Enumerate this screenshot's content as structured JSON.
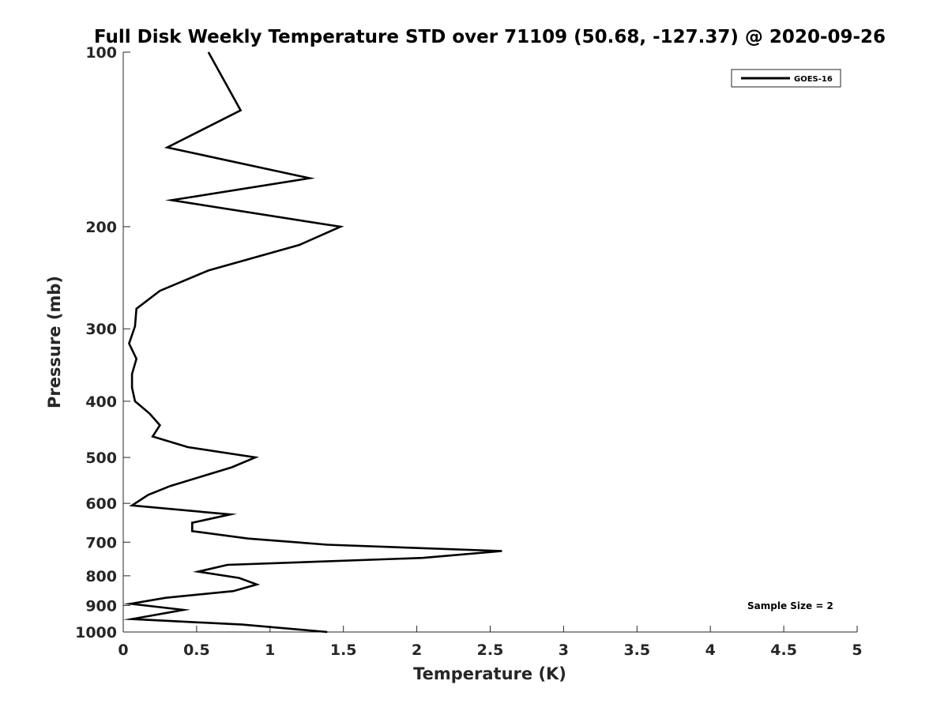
{
  "chart_data": {
    "type": "line",
    "title": "Full Disk Weekly Temperature STD over 71109 (50.68, -127.37) @ 2020-09-26",
    "xlabel": "Temperature (K)",
    "ylabel": "Pressure (mb)",
    "xlim": [
      0,
      5
    ],
    "ylim": [
      100,
      1000
    ],
    "y_scale": "log",
    "y_reversed": true,
    "x_ticks": [
      0,
      0.5,
      1,
      1.5,
      2,
      2.5,
      3,
      3.5,
      4,
      4.5,
      5
    ],
    "x_tick_labels": [
      "0",
      "0.5",
      "1",
      "1.5",
      "2",
      "2.5",
      "3",
      "3.5",
      "4",
      "4.5",
      "5"
    ],
    "y_ticks": [
      100,
      200,
      300,
      400,
      500,
      600,
      700,
      800,
      900,
      1000
    ],
    "y_tick_labels": [
      "100",
      "200",
      "300",
      "400",
      "500",
      "600",
      "700",
      "800",
      "900",
      "1000"
    ],
    "grid": false,
    "legend_position": "top-right",
    "annotation": "Sample Size = 2",
    "series": [
      {
        "name": "GOES-16",
        "color": "#000000",
        "points": [
          [
            0.58,
            100
          ],
          [
            0.8,
            126
          ],
          [
            0.3,
            146
          ],
          [
            1.27,
            165
          ],
          [
            0.33,
            180
          ],
          [
            1.48,
            200
          ],
          [
            1.2,
            215
          ],
          [
            0.58,
            238
          ],
          [
            0.25,
            258
          ],
          [
            0.09,
            277
          ],
          [
            0.08,
            297
          ],
          [
            0.04,
            318
          ],
          [
            0.09,
            338
          ],
          [
            0.06,
            359
          ],
          [
            0.06,
            379
          ],
          [
            0.08,
            400
          ],
          [
            0.18,
            420
          ],
          [
            0.25,
            440
          ],
          [
            0.2,
            460
          ],
          [
            0.44,
            480
          ],
          [
            0.9,
            500
          ],
          [
            0.74,
            520
          ],
          [
            0.32,
            560
          ],
          [
            0.17,
            580
          ],
          [
            0.06,
            605
          ],
          [
            0.73,
            627
          ],
          [
            0.47,
            648
          ],
          [
            0.47,
            670
          ],
          [
            0.85,
            690
          ],
          [
            1.39,
            707
          ],
          [
            2.58,
            725
          ],
          [
            2.04,
            745
          ],
          [
            0.71,
            766
          ],
          [
            0.51,
            787
          ],
          [
            0.79,
            807
          ],
          [
            0.91,
            828
          ],
          [
            0.75,
            850
          ],
          [
            0.29,
            873
          ],
          [
            0.05,
            894
          ],
          [
            0.41,
            916
          ],
          [
            0.06,
            950
          ],
          [
            0.81,
            971
          ],
          [
            1.39,
            1000
          ]
        ]
      }
    ]
  }
}
